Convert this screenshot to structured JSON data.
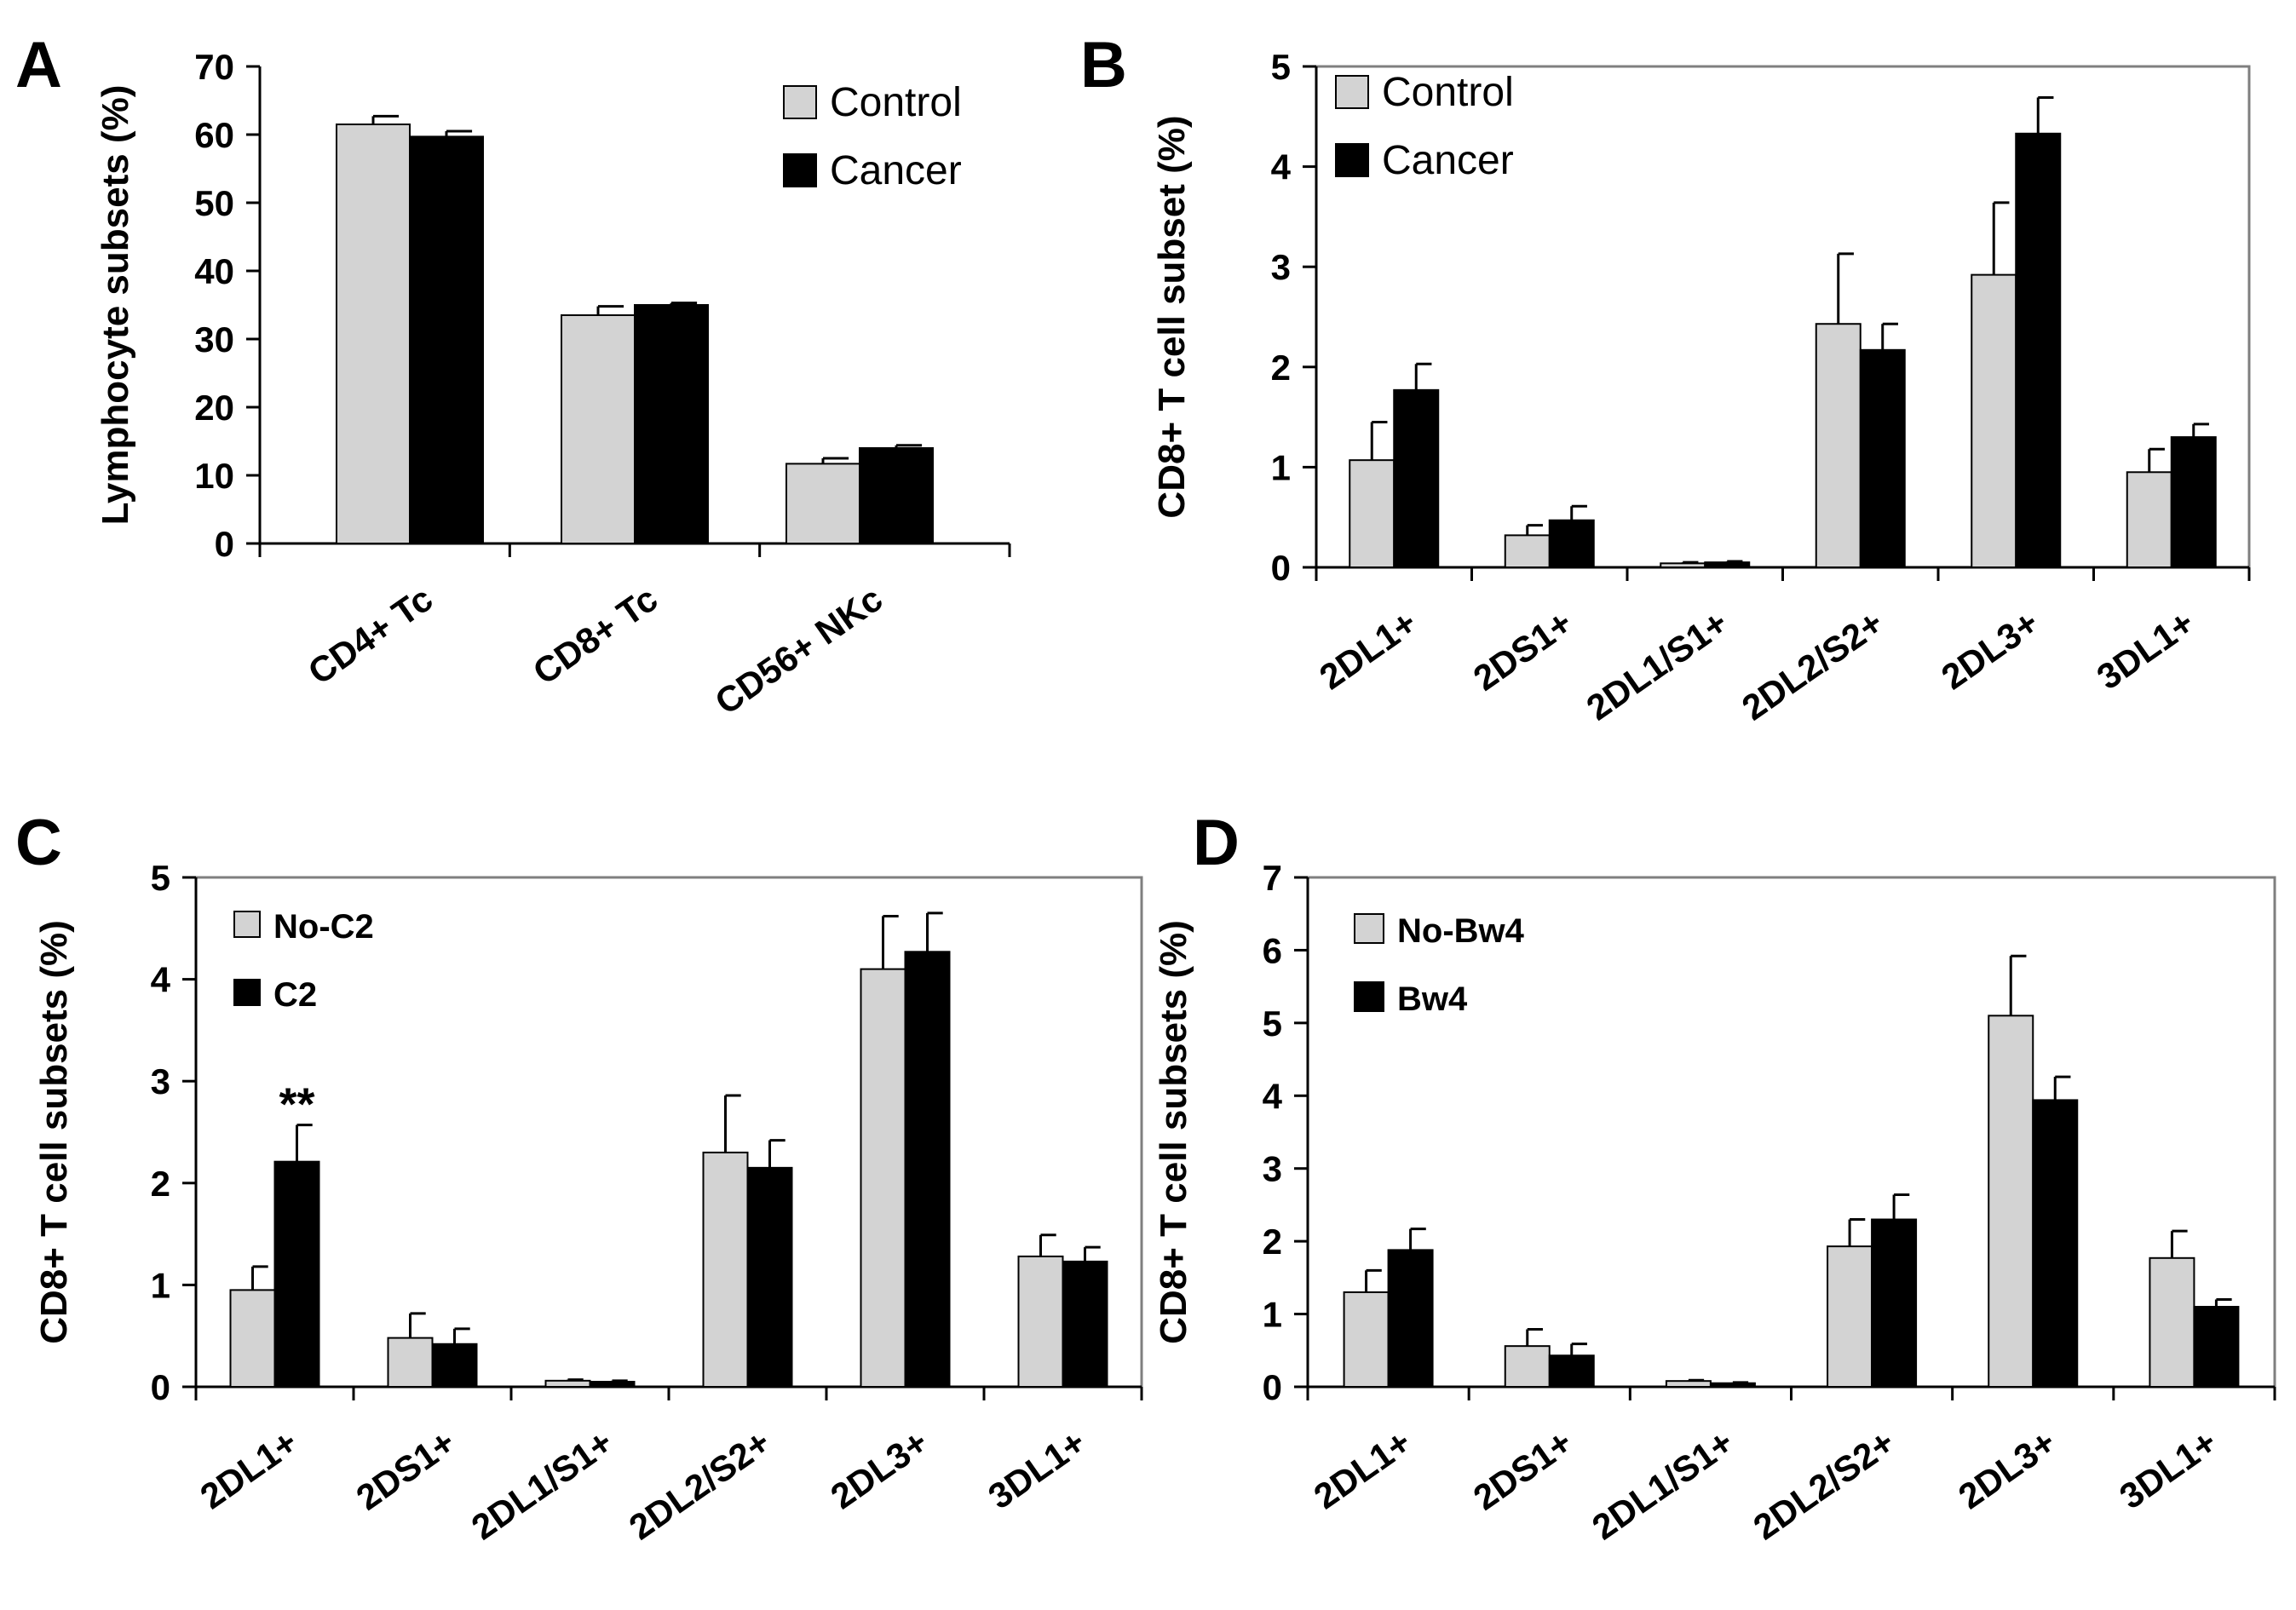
{
  "colors": {
    "control": "#d3d3d3",
    "cancer": "#000000",
    "frame": "#7f7f7f"
  },
  "chart_data": [
    {
      "type": "bar",
      "panel": "A",
      "ylabel": "Lymphocyte subsets (%)",
      "ylim": [
        0,
        70
      ],
      "yticks": [
        "0",
        "10",
        "20",
        "30",
        "40",
        "50",
        "60",
        "70"
      ],
      "categories": [
        "CD4+ Tc",
        "CD8+ Tc",
        "CD56+ NKc"
      ],
      "series": [
        {
          "name": "Control",
          "values": [
            61.5,
            33.5,
            11.7
          ],
          "errors": [
            1.2,
            1.3,
            0.8
          ]
        },
        {
          "name": "Cancer",
          "values": [
            59.7,
            35.0,
            14.0
          ],
          "errors": [
            0.8,
            0.3,
            0.4
          ]
        }
      ],
      "legend": "top-right",
      "annotations": []
    },
    {
      "type": "bar",
      "panel": "B",
      "ylabel": "CD8+ T cell subset (%)",
      "ylim": [
        0,
        5
      ],
      "yticks": [
        "0",
        "1",
        "2",
        "3",
        "4",
        "5"
      ],
      "categories": [
        "2DL1+",
        "2DS1+",
        "2DL1/S1+",
        "2DL2/S2+",
        "2DL3+",
        "3DL1+"
      ],
      "series": [
        {
          "name": "Control",
          "values": [
            1.07,
            0.32,
            0.04,
            2.43,
            2.92,
            0.95
          ],
          "errors": [
            0.38,
            0.1,
            0.01,
            0.7,
            0.72,
            0.23
          ]
        },
        {
          "name": "Cancer",
          "values": [
            1.77,
            0.47,
            0.05,
            2.17,
            4.33,
            1.3
          ],
          "errors": [
            0.26,
            0.14,
            0.01,
            0.26,
            0.36,
            0.13
          ]
        }
      ],
      "legend": "top-left",
      "annotations": []
    },
    {
      "type": "bar",
      "panel": "C",
      "ylabel": "CD8+ T cell subsets (%)",
      "ylim": [
        0,
        5
      ],
      "yticks": [
        "0",
        "1",
        "2",
        "3",
        "4",
        "5"
      ],
      "categories": [
        "2DL1+",
        "2DS1+",
        "2DL1/S1+",
        "2DL2/S2+",
        "2DL3+",
        "3DL1+"
      ],
      "series": [
        {
          "name": "No-C2",
          "values": [
            0.95,
            0.48,
            0.06,
            2.3,
            4.1,
            1.28
          ],
          "errors": [
            0.23,
            0.24,
            0.01,
            0.56,
            0.52,
            0.21
          ]
        },
        {
          "name": "C2",
          "values": [
            2.21,
            0.42,
            0.05,
            2.15,
            4.27,
            1.23
          ],
          "errors": [
            0.36,
            0.15,
            0.01,
            0.27,
            0.38,
            0.14
          ]
        }
      ],
      "legend": "top-left",
      "annotations": [
        {
          "text": "**",
          "category": "2DL1+",
          "series": "C2"
        }
      ]
    },
    {
      "type": "bar",
      "panel": "D",
      "ylabel": "CD8+ T cell subsets (%)",
      "ylim": [
        0,
        7
      ],
      "yticks": [
        "0",
        "1",
        "2",
        "3",
        "4",
        "5",
        "6",
        "7"
      ],
      "categories": [
        "2DL1+",
        "2DS1+",
        "2DL1/S1+",
        "2DL2/S2+",
        "2DL3+",
        "3DL1+"
      ],
      "series": [
        {
          "name": "No-Bw4",
          "values": [
            1.3,
            0.56,
            0.08,
            1.93,
            5.1,
            1.77
          ],
          "errors": [
            0.3,
            0.23,
            0.01,
            0.37,
            0.82,
            0.37
          ]
        },
        {
          "name": "Bw4",
          "values": [
            1.88,
            0.43,
            0.05,
            2.3,
            3.94,
            1.1
          ],
          "errors": [
            0.29,
            0.16,
            0.01,
            0.34,
            0.32,
            0.1
          ]
        }
      ],
      "legend": "top-left",
      "annotations": []
    }
  ]
}
